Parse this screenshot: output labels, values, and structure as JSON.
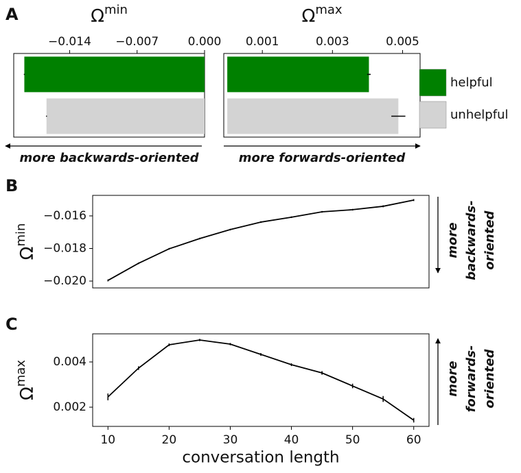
{
  "chart_data": [
    {
      "type": "bar",
      "orientation": "horizontal",
      "panel_label": "A",
      "title": "Ω",
      "title_superscript": "min",
      "xlim": [
        -0.0198,
        0
      ],
      "xticks": [
        {
          "value": -0.014,
          "label": "−0.014"
        },
        {
          "value": -0.007,
          "label": "−0.007"
        },
        {
          "value": 0,
          "label": "0.000"
        }
      ],
      "series": [
        {
          "color": "#008000",
          "values": [
            -0.0187
          ],
          "errors": [
            5e-05
          ]
        },
        {
          "color": "#d3d3d3",
          "values": [
            -0.0164
          ],
          "errors": [
            5e-05
          ]
        }
      ],
      "annotation": "more backwards-oriented",
      "arrow": "left"
    },
    {
      "type": "bar",
      "orientation": "horizontal",
      "title": "Ω",
      "title_superscript": "max",
      "xlim": [
        -0.0001,
        0.0055
      ],
      "xticks": [
        0.001,
        0.003,
        0.005
      ],
      "series": [
        {
          "name": "helpful",
          "color": "#008000",
          "values": [
            0.00404
          ],
          "errors": [
            5e-05
          ]
        },
        {
          "name": "unhelpful",
          "color": "#d3d3d3",
          "values": [
            0.00488
          ],
          "errors": [
            0.0002
          ]
        }
      ],
      "legend": "right",
      "annotation": "more forwards-oriented",
      "arrow": "right"
    },
    {
      "type": "line",
      "panel_label": "B",
      "ylabel": "Ω",
      "ylabel_superscript": "min",
      "x": [
        10,
        15,
        20,
        25,
        30,
        35,
        40,
        45,
        50,
        55,
        60
      ],
      "values": [
        -0.01996,
        -0.01891,
        -0.01802,
        -0.01739,
        -0.01684,
        -0.01638,
        -0.01608,
        -0.01575,
        -0.01562,
        -0.01541,
        -0.01503
      ],
      "errors": [
        6e-05,
        5e-05,
        5e-05,
        5e-05,
        5e-05,
        5e-05,
        5e-05,
        5e-05,
        5e-05,
        6e-05,
        6e-05
      ],
      "color": "#000000",
      "xlim": [
        7.5,
        62.5
      ],
      "ylim": [
        -0.02042,
        -0.01474
      ],
      "yticks": [
        {
          "value": -0.016,
          "label": "−0.016"
        },
        {
          "value": -0.018,
          "label": "−0.018"
        },
        {
          "value": -0.02,
          "label": "−0.020"
        }
      ],
      "side_note": [
        "more",
        "backwards-",
        "oriented"
      ],
      "arrow": "down"
    },
    {
      "type": "line",
      "panel_label": "C",
      "ylabel": "Ω",
      "ylabel_superscript": "max",
      "xlabel": "conversation length",
      "x": [
        10,
        15,
        20,
        25,
        30,
        35,
        40,
        45,
        50,
        55,
        60
      ],
      "values": [
        0.002455,
        0.003727,
        0.004758,
        0.00497,
        0.004788,
        0.004333,
        0.003879,
        0.003515,
        0.002939,
        0.002364,
        0.001424
      ],
      "errors": [
        0.00015,
        8e-05,
        6e-05,
        5e-05,
        5e-05,
        6e-05,
        6e-05,
        8e-05,
        0.0001,
        0.00013,
        0.0001
      ],
      "color": "#000000",
      "xlim": [
        7.5,
        62.5
      ],
      "ylim": [
        0.001152,
        0.005242
      ],
      "xticks": [
        10,
        20,
        30,
        40,
        50,
        60
      ],
      "yticks": [
        0.004,
        0.002
      ],
      "side_note": [
        "more",
        "forwards-",
        "oriented"
      ],
      "arrow": "up"
    }
  ]
}
